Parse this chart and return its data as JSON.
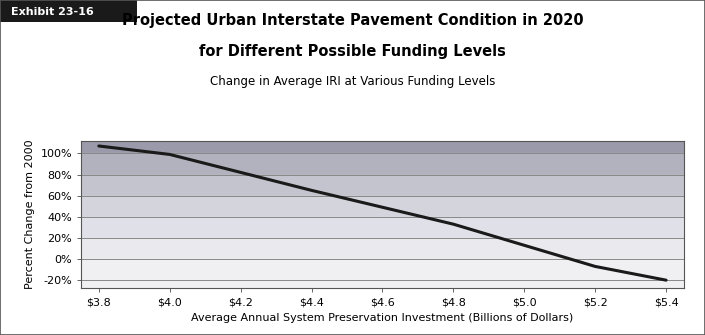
{
  "title_line1": "Projected Urban Interstate Pavement Condition in 2020",
  "title_line2": "for Different Possible Funding Levels",
  "subtitle": "Change in Average IRI at Various Funding Levels",
  "xlabel": "Average Annual System Preservation Investment (Billions of Dollars)",
  "ylabel": "Percent Change from 2000",
  "exhibit_label": "Exhibit 23-16",
  "x_values": [
    3.8,
    4.0,
    4.2,
    4.4,
    4.6,
    4.8,
    5.0,
    5.2,
    5.4
  ],
  "y_values": [
    1.07,
    0.99,
    0.82,
    0.65,
    0.49,
    0.33,
    0.13,
    -0.07,
    -0.2
  ],
  "x_tick_labels": [
    "$3.8",
    "$4.0",
    "$4.2",
    "$4.4",
    "$4.6",
    "$4.8",
    "$5.0",
    "$5.2",
    "$5.4"
  ],
  "y_tick_values": [
    -0.2,
    0.0,
    0.2,
    0.4,
    0.6,
    0.8,
    1.0
  ],
  "y_tick_labels": [
    "-20%",
    "0%",
    "20%",
    "40%",
    "60%",
    "80%",
    "100%"
  ],
  "ylim": [
    -0.275,
    1.12
  ],
  "xlim": [
    3.75,
    5.45
  ],
  "line_color": "#1a1a1a",
  "line_width": 2.2,
  "bg_color": "#ffffff",
  "band_tops": [
    1.12,
    1.0,
    0.8,
    0.6,
    0.4,
    0.2,
    0.0
  ],
  "band_bottoms": [
    1.0,
    0.8,
    0.6,
    0.4,
    0.2,
    0.0,
    -0.275
  ],
  "band_colors": [
    "#9a9aaa",
    "#b2b2be",
    "#c4c4ce",
    "#d4d4dc",
    "#e0e0e8",
    "#eaeaee",
    "#f0f0f2"
  ],
  "grid_color": "#888888",
  "title_fontsize": 10.5,
  "subtitle_fontsize": 8.5,
  "axis_label_fontsize": 8,
  "tick_fontsize": 8,
  "exhibit_bg": "#1a1a1a",
  "exhibit_text_color": "#ffffff"
}
